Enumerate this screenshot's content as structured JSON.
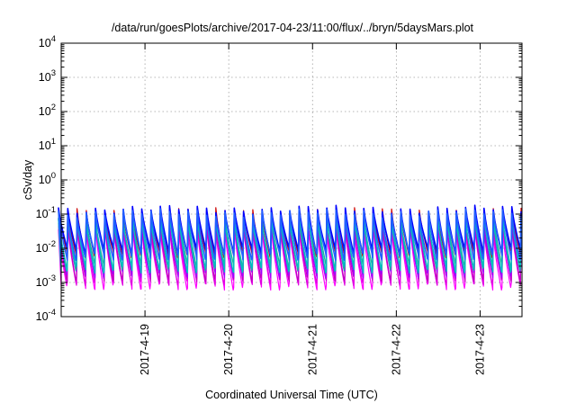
{
  "chart_data": {
    "type": "line",
    "title": "/data/run/goesPlots/archive/2017-04-23/11:00/flux/../bryn/5daysMars.plot",
    "xlabel": "Coordinated Universal Time (UTC)",
    "ylabel": "cSv/day",
    "xlim": [
      "2017-04-18T00:00",
      "2017-04-23T12:00"
    ],
    "ylim": [
      0.0001,
      10000
    ],
    "y_scale": "log",
    "grid": true,
    "x_tick_labels": [
      "2017-4-19",
      "2017-4-20",
      "2017-4-21",
      "2017-4-22",
      "2017-4-23"
    ],
    "x_tick_times": [
      "2017-04-19T00:00",
      "2017-04-20T00:00",
      "2017-04-21T00:00",
      "2017-04-22T00:00",
      "2017-04-23T00:00"
    ],
    "y_ticks": [
      {
        "value": 0.0001,
        "base": "10",
        "exp": "-4"
      },
      {
        "value": 0.001,
        "base": "10",
        "exp": "-3"
      },
      {
        "value": 0.01,
        "base": "10",
        "exp": "-2"
      },
      {
        "value": 0.1,
        "base": "10",
        "exp": "-1"
      },
      {
        "value": 1,
        "base": "10",
        "exp": "0"
      },
      {
        "value": 10,
        "base": "10",
        "exp": "1"
      },
      {
        "value": 100,
        "base": "10",
        "exp": "2"
      },
      {
        "value": 1000,
        "base": "10",
        "exp": "3"
      },
      {
        "value": 10000,
        "base": "10",
        "exp": "4"
      }
    ],
    "sawtooth_period_hours": 2.65,
    "series": [
      {
        "color": "#ff00ff",
        "peak": 0.035,
        "trough": 0.0008,
        "width": 1.2
      },
      {
        "color": "#e000e0",
        "peak": 0.045,
        "trough": 0.0011,
        "width": 1.2
      },
      {
        "color": "#c000c0",
        "peak": 0.055,
        "trough": 0.0014,
        "width": 1.2
      },
      {
        "color": "#a000ff",
        "peak": 0.065,
        "trough": 0.0018,
        "width": 1.2
      },
      {
        "color": "#cc0000",
        "peak": 0.12,
        "trough": 0.007,
        "width": 1.2
      },
      {
        "color": "#20b0a0",
        "peak": 0.085,
        "trough": 0.003,
        "width": 1.4
      },
      {
        "color": "#00c0c0",
        "peak": 0.075,
        "trough": 0.0025,
        "width": 1.4
      },
      {
        "color": "#0000ff",
        "peak": 0.14,
        "trough": 0.009,
        "width": 1.6
      },
      {
        "color": "#2060ff",
        "peak": 0.11,
        "trough": 0.006,
        "width": 1.6
      }
    ]
  }
}
